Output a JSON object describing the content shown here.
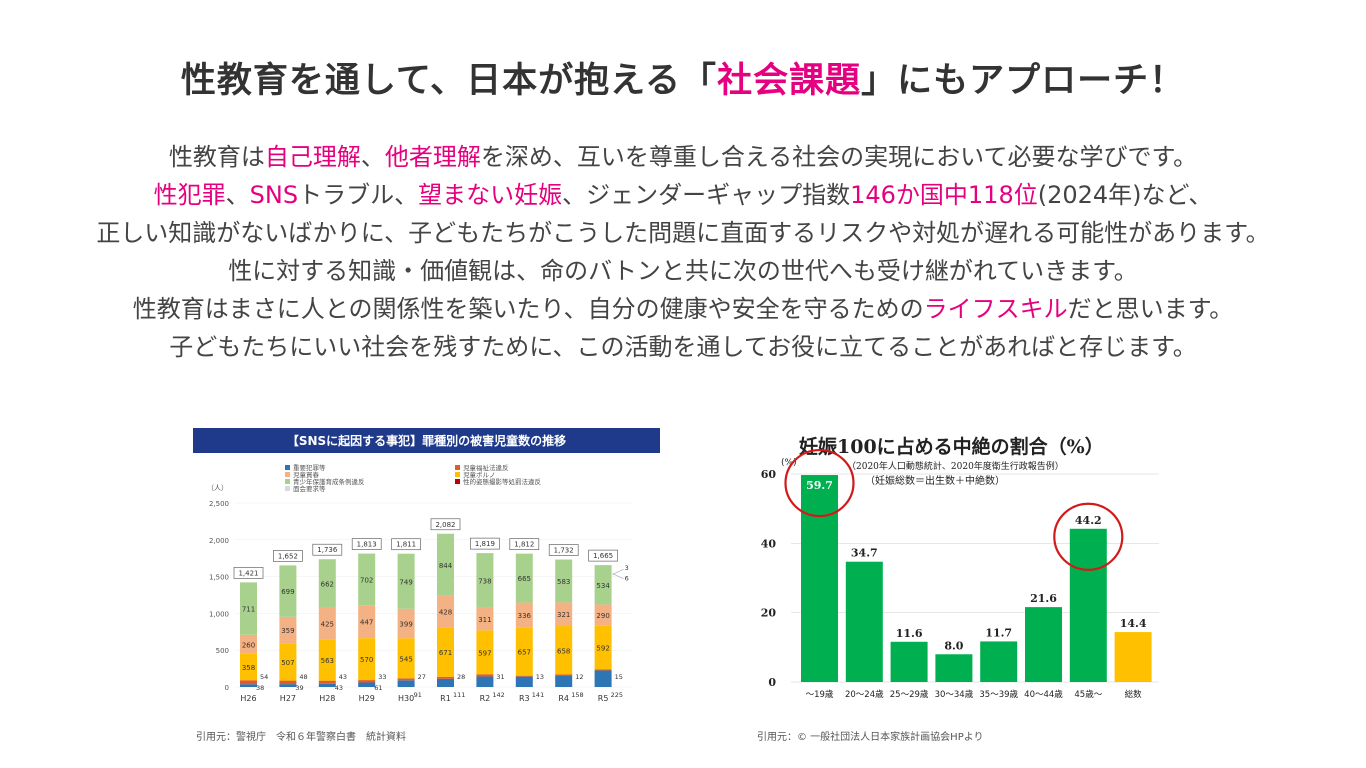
{
  "heading": {
    "pre": "性教育を通して、日本が抱える「",
    "highlight": "社会課題",
    "post": "」にもアプローチ！"
  },
  "paragraph": {
    "l1": [
      "性教育は",
      "自己理解",
      "、",
      "他者理解",
      "を深め、互いを尊重し合える社会の実現において必要な学びです。"
    ],
    "l2": [
      "性犯罪",
      "、",
      "SNS",
      "トラブル、",
      "望まない妊娠",
      "、ジェンダーギャップ指数",
      "146か国中118位",
      "(2024年)など、"
    ],
    "l3": "正しい知識がないばかりに、子どもたちがこうした問題に直面するリスクや対処が遅れる可能性があります。",
    "l4": "性に対する知識・価値観は、命のバトンと共に次の世代へも受け継がれていきます。",
    "l5": [
      "性教育はまさに人との関係性を築いたり、自分の健康や安全を守るための",
      "ライフスキル",
      "だと思います。"
    ],
    "l6": "子どもたちにいい社会を残すために、この活動を通してお役に立てることがあればと存じます。"
  },
  "captions": {
    "left": "引用元：警視庁　令和６年警察白書　統計資料",
    "right": "引用元：© 一般社団法人日本家族計画協会HPより"
  },
  "colors": {
    "accent": "#e4007f",
    "c1": "#2e75b6",
    "c2": "#e15b2d",
    "c3": "#ffc000",
    "c4": "#f4b183",
    "c5": "#a9d18e",
    "c6": "#d9d9d9",
    "pillGreen": "#00b050",
    "pillYellow": "#ffc000",
    "circleRed": "#d11a1a"
  },
  "chart_data": [
    {
      "type": "bar",
      "stacked": true,
      "title": "【SNSに起因する事犯】罪種別の被害児童数の推移",
      "ylabel": "（人）",
      "ylim": [
        0,
        2500
      ],
      "yticks": [
        "0",
        "500",
        "1,000",
        "1,500",
        "2,000",
        "2,500"
      ],
      "categories": [
        "H26",
        "H27",
        "H28",
        "H29",
        "H30",
        "R1",
        "R2",
        "R3",
        "R4",
        "R5"
      ],
      "totals": [
        "1,421",
        "1,652",
        "1,736",
        "1,813",
        "1,811",
        "2,082",
        "1,819",
        "1,812",
        "1,732",
        "1,665"
      ],
      "legend": [
        "重要犯罪等",
        "児童買春",
        "青少年保護育成条例違反",
        "面会要求等",
        "児童福祉法違反",
        "児童ポルノ",
        "性的姿態撮影等処罰法違反"
      ],
      "series": [
        {
          "name": "重要犯罪等",
          "values": [
            38,
            39,
            43,
            61,
            91,
            111,
            142,
            141,
            158,
            225
          ]
        },
        {
          "name": "児童福祉法違反",
          "values": [
            54,
            48,
            43,
            33,
            27,
            28,
            31,
            13,
            12,
            15
          ]
        },
        {
          "name": "児童ポルノ",
          "values": [
            358,
            507,
            563,
            570,
            545,
            671,
            597,
            657,
            658,
            592
          ]
        },
        {
          "name": "児童買春",
          "values": [
            260,
            359,
            425,
            447,
            399,
            428,
            311,
            336,
            321,
            290
          ]
        },
        {
          "name": "青少年保護育成条例違反",
          "values": [
            711,
            699,
            662,
            702,
            749,
            844,
            738,
            665,
            583,
            534
          ]
        },
        {
          "name": "性的姿態撮影等処罰法違反",
          "values": [
            0,
            0,
            0,
            0,
            0,
            0,
            0,
            0,
            0,
            6
          ]
        },
        {
          "name": "面会要求等",
          "values": [
            0,
            0,
            0,
            0,
            0,
            0,
            0,
            0,
            0,
            3
          ]
        }
      ],
      "side_labels": [
        "3",
        "6"
      ]
    },
    {
      "type": "bar",
      "title": "妊娠100に占める中絶の割合（%）",
      "subtitle1": "（2020年人口動態統計、2020年度衛生行政報告例）",
      "subtitle2": "（妊娠総数＝出生数＋中絶数）",
      "ylabel": "(%)",
      "ylim": [
        0,
        60
      ],
      "yticks": [
        "0",
        "20",
        "40",
        "60"
      ],
      "categories": [
        "～19歳",
        "20～24歳",
        "25～29歳",
        "30～34歳",
        "35～39歳",
        "40～44歳",
        "45歳～",
        "総数"
      ],
      "values": [
        59.7,
        34.7,
        11.6,
        8.0,
        11.7,
        21.6,
        44.2,
        14.4
      ],
      "labels": [
        "59.7",
        "34.7",
        "11.6",
        "8.0",
        "11.7",
        "21.6",
        "44.2",
        "14.4"
      ],
      "highlighted": [
        "～19歳",
        "45歳～"
      ]
    }
  ]
}
